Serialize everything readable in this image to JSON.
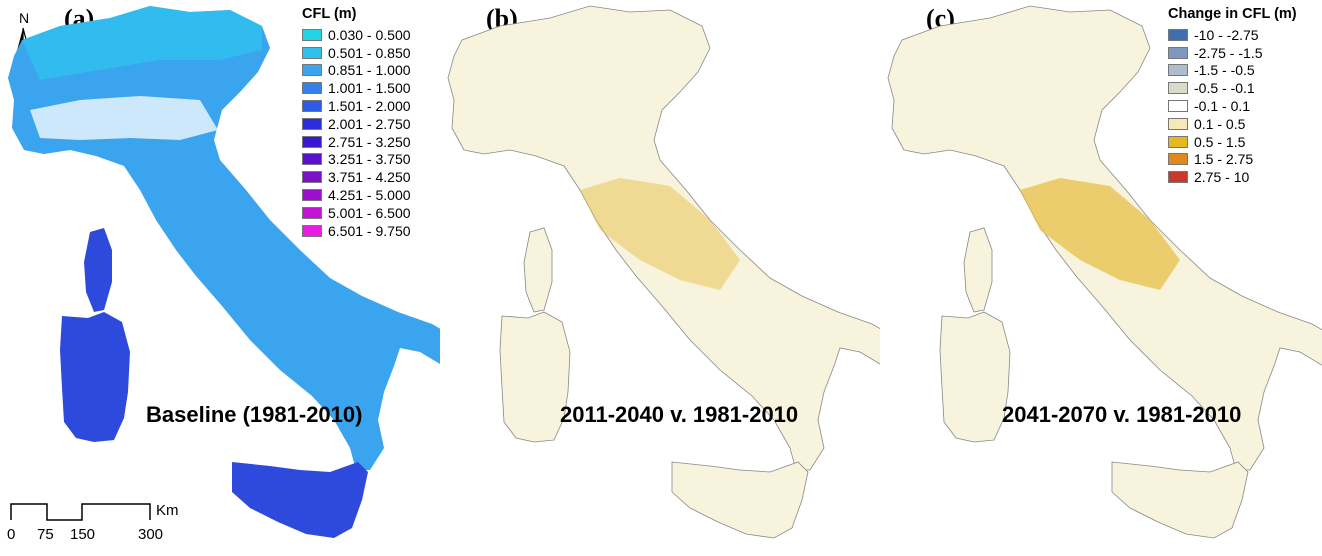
{
  "panels": [
    {
      "label": "(a)",
      "period": "Baseline (1981-2010)",
      "legend": {
        "title": "CFL (m)",
        "items": [
          {
            "label": "0.030 - 0.500",
            "color": "#22d4e6"
          },
          {
            "label": "0.501 - 0.850",
            "color": "#2fc0ee"
          },
          {
            "label": "0.851 - 1.000",
            "color": "#3aa4ee"
          },
          {
            "label": "1.001 - 1.500",
            "color": "#3480ea"
          },
          {
            "label": "1.501 - 2.000",
            "color": "#2e5ae4"
          },
          {
            "label": "2.001 - 2.750",
            "color": "#2a2edc"
          },
          {
            "label": "2.751 - 3.250",
            "color": "#3a18d4"
          },
          {
            "label": "3.251 - 3.750",
            "color": "#5812cc"
          },
          {
            "label": "3.751 - 4.250",
            "color": "#7a12c6"
          },
          {
            "label": "4.251 - 5.000",
            "color": "#9c10cc"
          },
          {
            "label": "5.001 - 6.500",
            "color": "#c412d6"
          },
          {
            "label": "6.501 - 9.750",
            "color": "#e81ee2"
          }
        ]
      }
    },
    {
      "label": "(b)",
      "period": "2011-2040 v. 1981-2010"
    },
    {
      "label": "(c)",
      "period": "2041-2070 v. 1981-2010",
      "legend": {
        "title": "Change in CFL (m)",
        "items": [
          {
            "label": "-10 - -2.75",
            "color": "#3f6fb0"
          },
          {
            "label": "-2.75 - -1.5",
            "color": "#7e98bf"
          },
          {
            "label": "-1.5 - -0.5",
            "color": "#aebccd"
          },
          {
            "label": "-0.5 - -0.1",
            "color": "#d9dccb"
          },
          {
            "label": "-0.1 - 0.1",
            "color": "#ffffff"
          },
          {
            "label": "0.1 - 0.5",
            "color": "#f5e9b8"
          },
          {
            "label": "0.5 - 1.5",
            "color": "#e8b820"
          },
          {
            "label": "1.5 - 2.75",
            "color": "#e08a1e"
          },
          {
            "label": "2.75 - 10",
            "color": "#c8392c"
          }
        ]
      }
    }
  ],
  "north_arrow": {
    "letter": "N"
  },
  "scale_bar": {
    "unit": "Km",
    "ticks": [
      "0",
      "75",
      "150",
      "300"
    ]
  },
  "map_fill": {
    "baseline_main": "#3aa4ee",
    "baseline_islands": "#2e4adc",
    "baseline_north": "#2fc0ee",
    "change_base": "#f7f3dc",
    "change_hot": "#e8c04a"
  }
}
